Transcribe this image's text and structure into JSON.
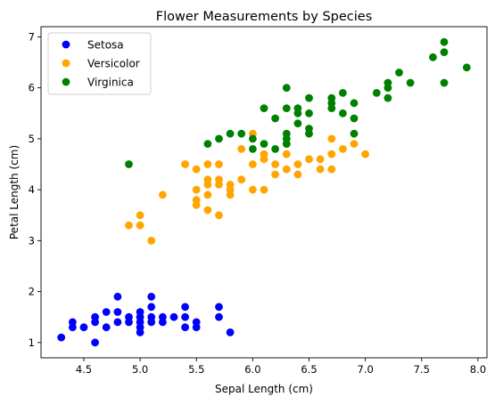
{
  "chart_data": {
    "type": "scatter",
    "title": "Flower Measurements by Species",
    "xlabel": "Sepal Length (cm)",
    "ylabel": "Petal Length (cm)",
    "xlim": [
      4.12,
      8.08
    ],
    "ylim": [
      0.7,
      7.2
    ],
    "xticks": [
      4.5,
      5.0,
      5.5,
      6.0,
      6.5,
      7.0,
      7.5,
      8.0
    ],
    "xtick_labels": [
      "4.5",
      "5.0",
      "5.5",
      "6.0",
      "6.5",
      "7.0",
      "7.5",
      "8.0"
    ],
    "yticks": [
      1,
      2,
      3,
      4,
      5,
      6,
      7
    ],
    "ytick_labels": [
      "1",
      "2",
      "3",
      "4",
      "5",
      "6",
      "7"
    ],
    "grid": false,
    "legend_position": "top-left",
    "series": [
      {
        "name": "Setosa",
        "color": "#0000ff",
        "points": [
          [
            4.3,
            1.1
          ],
          [
            4.4,
            1.3
          ],
          [
            4.4,
            1.4
          ],
          [
            4.5,
            1.3
          ],
          [
            4.6,
            1.0
          ],
          [
            4.6,
            1.4
          ],
          [
            4.6,
            1.5
          ],
          [
            4.7,
            1.3
          ],
          [
            4.7,
            1.6
          ],
          [
            4.8,
            1.4
          ],
          [
            4.8,
            1.6
          ],
          [
            4.8,
            1.9
          ],
          [
            4.9,
            1.4
          ],
          [
            4.9,
            1.5
          ],
          [
            5.0,
            1.2
          ],
          [
            5.0,
            1.3
          ],
          [
            5.0,
            1.4
          ],
          [
            5.0,
            1.5
          ],
          [
            5.0,
            1.6
          ],
          [
            5.1,
            1.4
          ],
          [
            5.1,
            1.5
          ],
          [
            5.1,
            1.7
          ],
          [
            5.1,
            1.9
          ],
          [
            5.2,
            1.4
          ],
          [
            5.2,
            1.5
          ],
          [
            5.3,
            1.5
          ],
          [
            5.4,
            1.3
          ],
          [
            5.4,
            1.5
          ],
          [
            5.4,
            1.7
          ],
          [
            5.5,
            1.3
          ],
          [
            5.5,
            1.4
          ],
          [
            5.7,
            1.5
          ],
          [
            5.7,
            1.7
          ],
          [
            5.8,
            1.2
          ]
        ]
      },
      {
        "name": "Versicolor",
        "color": "#ffa500",
        "points": [
          [
            4.9,
            3.3
          ],
          [
            5.0,
            3.3
          ],
          [
            5.0,
            3.5
          ],
          [
            5.1,
            3.0
          ],
          [
            5.2,
            3.9
          ],
          [
            5.4,
            4.5
          ],
          [
            5.5,
            3.7
          ],
          [
            5.5,
            3.8
          ],
          [
            5.5,
            4.0
          ],
          [
            5.5,
            4.4
          ],
          [
            5.6,
            3.6
          ],
          [
            5.6,
            3.9
          ],
          [
            5.6,
            4.1
          ],
          [
            5.6,
            4.2
          ],
          [
            5.6,
            4.5
          ],
          [
            5.7,
            3.5
          ],
          [
            5.7,
            4.1
          ],
          [
            5.7,
            4.2
          ],
          [
            5.7,
            4.5
          ],
          [
            5.8,
            3.9
          ],
          [
            5.8,
            4.0
          ],
          [
            5.8,
            4.1
          ],
          [
            5.9,
            4.2
          ],
          [
            5.9,
            4.8
          ],
          [
            6.0,
            4.0
          ],
          [
            6.0,
            4.5
          ],
          [
            6.0,
            5.1
          ],
          [
            6.1,
            4.0
          ],
          [
            6.1,
            4.6
          ],
          [
            6.1,
            4.7
          ],
          [
            6.2,
            4.3
          ],
          [
            6.2,
            4.5
          ],
          [
            6.3,
            4.4
          ],
          [
            6.3,
            4.7
          ],
          [
            6.3,
            4.9
          ],
          [
            6.4,
            4.3
          ],
          [
            6.4,
            4.5
          ],
          [
            6.5,
            4.6
          ],
          [
            6.6,
            4.4
          ],
          [
            6.6,
            4.6
          ],
          [
            6.7,
            4.4
          ],
          [
            6.7,
            4.7
          ],
          [
            6.7,
            5.0
          ],
          [
            6.8,
            4.8
          ],
          [
            6.9,
            4.9
          ],
          [
            7.0,
            4.7
          ]
        ]
      },
      {
        "name": "Virginica",
        "color": "#008000",
        "points": [
          [
            4.9,
            4.5
          ],
          [
            5.6,
            4.9
          ],
          [
            5.7,
            5.0
          ],
          [
            5.8,
            5.1
          ],
          [
            5.9,
            5.1
          ],
          [
            6.0,
            4.8
          ],
          [
            6.0,
            5.0
          ],
          [
            6.1,
            4.9
          ],
          [
            6.1,
            5.6
          ],
          [
            6.2,
            4.8
          ],
          [
            6.2,
            5.4
          ],
          [
            6.3,
            4.9
          ],
          [
            6.3,
            5.0
          ],
          [
            6.3,
            5.1
          ],
          [
            6.3,
            5.6
          ],
          [
            6.3,
            6.0
          ],
          [
            6.4,
            5.3
          ],
          [
            6.4,
            5.5
          ],
          [
            6.4,
            5.6
          ],
          [
            6.5,
            5.1
          ],
          [
            6.5,
            5.2
          ],
          [
            6.5,
            5.5
          ],
          [
            6.5,
            5.8
          ],
          [
            6.7,
            5.6
          ],
          [
            6.7,
            5.7
          ],
          [
            6.7,
            5.8
          ],
          [
            6.8,
            5.5
          ],
          [
            6.8,
            5.9
          ],
          [
            6.9,
            5.1
          ],
          [
            6.9,
            5.4
          ],
          [
            6.9,
            5.7
          ],
          [
            7.1,
            5.9
          ],
          [
            7.2,
            5.8
          ],
          [
            7.2,
            6.0
          ],
          [
            7.2,
            6.1
          ],
          [
            7.3,
            6.3
          ],
          [
            7.4,
            6.1
          ],
          [
            7.6,
            6.6
          ],
          [
            7.7,
            6.1
          ],
          [
            7.7,
            6.7
          ],
          [
            7.7,
            6.9
          ],
          [
            7.9,
            6.4
          ]
        ]
      }
    ]
  }
}
